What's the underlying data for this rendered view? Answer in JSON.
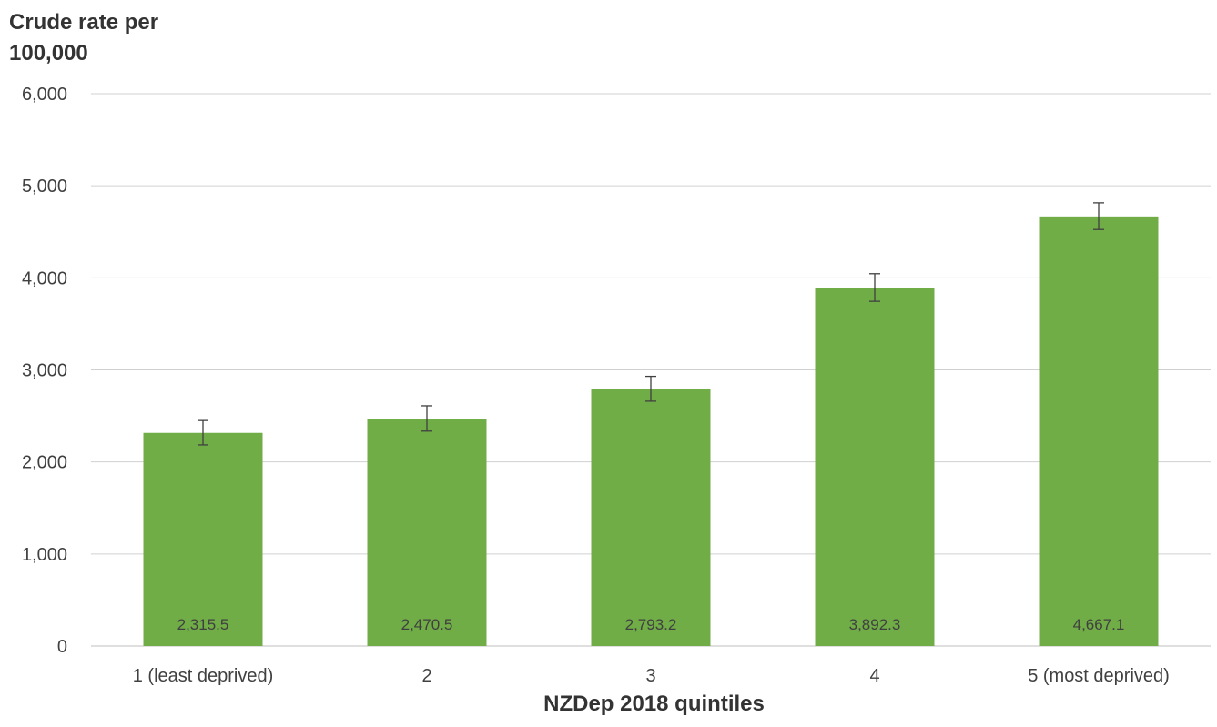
{
  "chart_data": {
    "type": "bar",
    "title": "",
    "ylabel": "Crude rate per 100,000",
    "xlabel": "NZDep 2018 quintiles",
    "categories": [
      "1 (least deprived)",
      "2",
      "3",
      "4",
      "5 (most deprived)"
    ],
    "values": [
      2315.5,
      2470.5,
      2793.2,
      3892.3,
      4667.1
    ],
    "data_labels": [
      "2,315.5",
      "2,470.5",
      "2,793.2",
      "3,892.3",
      "4,667.1"
    ],
    "error_low": [
      2185,
      2335,
      2660,
      3745,
      4525
    ],
    "error_high": [
      2450,
      2610,
      2930,
      4045,
      4815
    ],
    "ylim": [
      0,
      6000
    ],
    "yticks": [
      0,
      1000,
      2000,
      3000,
      4000,
      5000,
      6000
    ],
    "ytick_labels": [
      "0",
      "1,000",
      "2,000",
      "3,000",
      "4,000",
      "5,000",
      "6,000"
    ],
    "grid": true,
    "bar_color": "#70ad47",
    "grid_color": "#d0d0d0",
    "error_bar_color": "#404040"
  }
}
